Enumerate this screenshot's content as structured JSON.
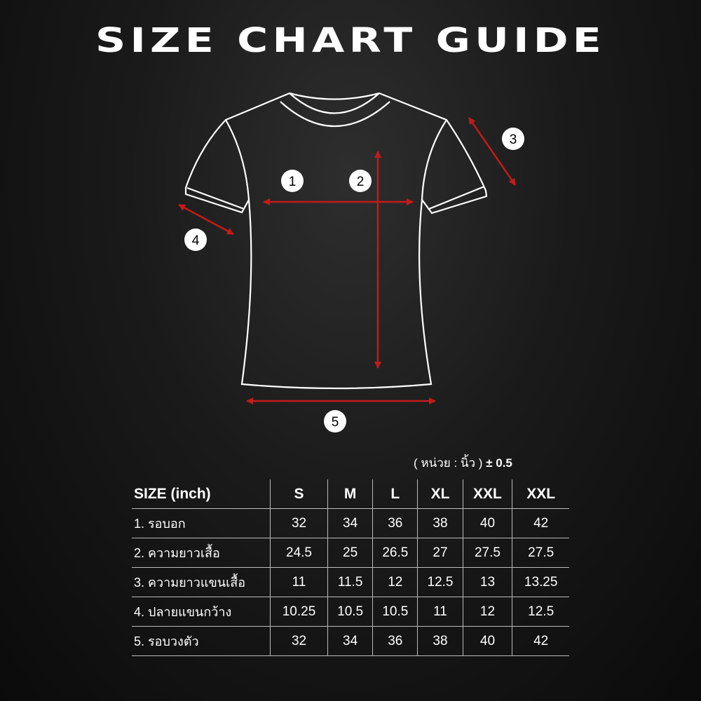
{
  "title": "SIZE CHART GUIDE",
  "markers": [
    "1",
    "2",
    "3",
    "4",
    "5"
  ],
  "colors": {
    "arrow": "#c41a1a",
    "outline": "#ffffff",
    "background": "#111111"
  },
  "unit_note": {
    "text": "( หน่วย : นิ้ว )",
    "tolerance": "± 0.5"
  },
  "table": {
    "header": [
      "SIZE (inch)",
      "S",
      "M",
      "L",
      "XL",
      "XXL",
      "XXL"
    ],
    "rows": [
      [
        "1. รอบอก",
        "32",
        "34",
        "36",
        "38",
        "40",
        "42"
      ],
      [
        "2. ความยาวเสื้อ",
        "24.5",
        "25",
        "26.5",
        "27",
        "27.5",
        "27.5"
      ],
      [
        "3. ความยาวแขนเสื้อ",
        "11",
        "11.5",
        "12",
        "12.5",
        "13",
        "13.25"
      ],
      [
        "4. ปลายแขนกว้าง",
        "10.25",
        "10.5",
        "10.5",
        "11",
        "12",
        "12.5"
      ],
      [
        "5. รอบวงตัว",
        "32",
        "34",
        "36",
        "38",
        "40",
        "42"
      ]
    ]
  }
}
